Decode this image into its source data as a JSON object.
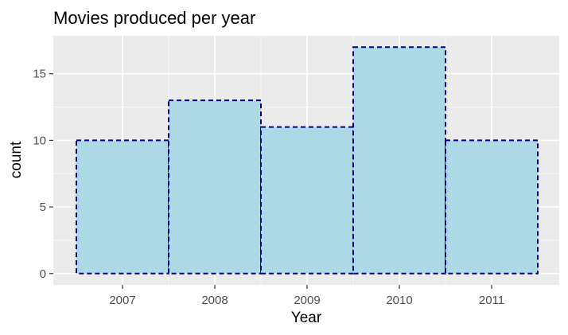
{
  "chart_data": {
    "type": "bar",
    "title": "Movies produced per year",
    "xlabel": "Year",
    "ylabel": "count",
    "categories": [
      "2007",
      "2008",
      "2009",
      "2010",
      "2011"
    ],
    "values": [
      10,
      13,
      11,
      17,
      10
    ],
    "y_ticks": [
      "0",
      "5",
      "10",
      "15"
    ],
    "ylim": [
      -0.85,
      17.85
    ],
    "grid": true,
    "legend": "none",
    "colors": {
      "panel_background": "#ebebeb",
      "grid_major": "#ffffff",
      "bar_fill": "#add8e6",
      "bar_outline": "#00008b",
      "text": "#000000",
      "tick_text": "#4d4d4d",
      "tick_mark": "#333333"
    }
  }
}
